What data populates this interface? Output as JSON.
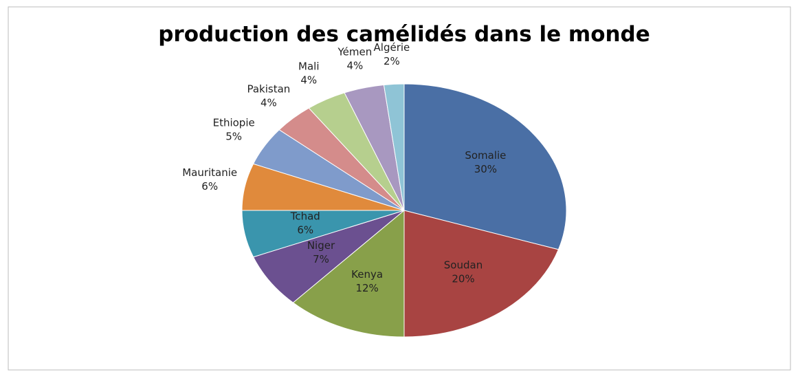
{
  "chart_data": {
    "type": "pie",
    "title": "production des camélidés dans le monde",
    "categories": [
      "Somalie",
      "Soudan",
      "Kenya",
      "Niger",
      "Tchad",
      "Mauritanie",
      "Ethiopie",
      "Pakistan",
      "Mali",
      "Yémen",
      "Algérie"
    ],
    "values": [
      30,
      20,
      12,
      7,
      6,
      6,
      5,
      4,
      4,
      4,
      2
    ],
    "value_labels": [
      "30%",
      "20%",
      "12%",
      "7%",
      "6%",
      "6%",
      "5%",
      "4%",
      "4%",
      "4%",
      "2%"
    ],
    "colors": [
      "#4a6fa5",
      "#a84442",
      "#88a04a",
      "#6b5090",
      "#3a95ad",
      "#e08a3c",
      "#7f9bcb",
      "#d48c8b",
      "#b6cf8e",
      "#a898c0",
      "#8fc4d6"
    ]
  }
}
